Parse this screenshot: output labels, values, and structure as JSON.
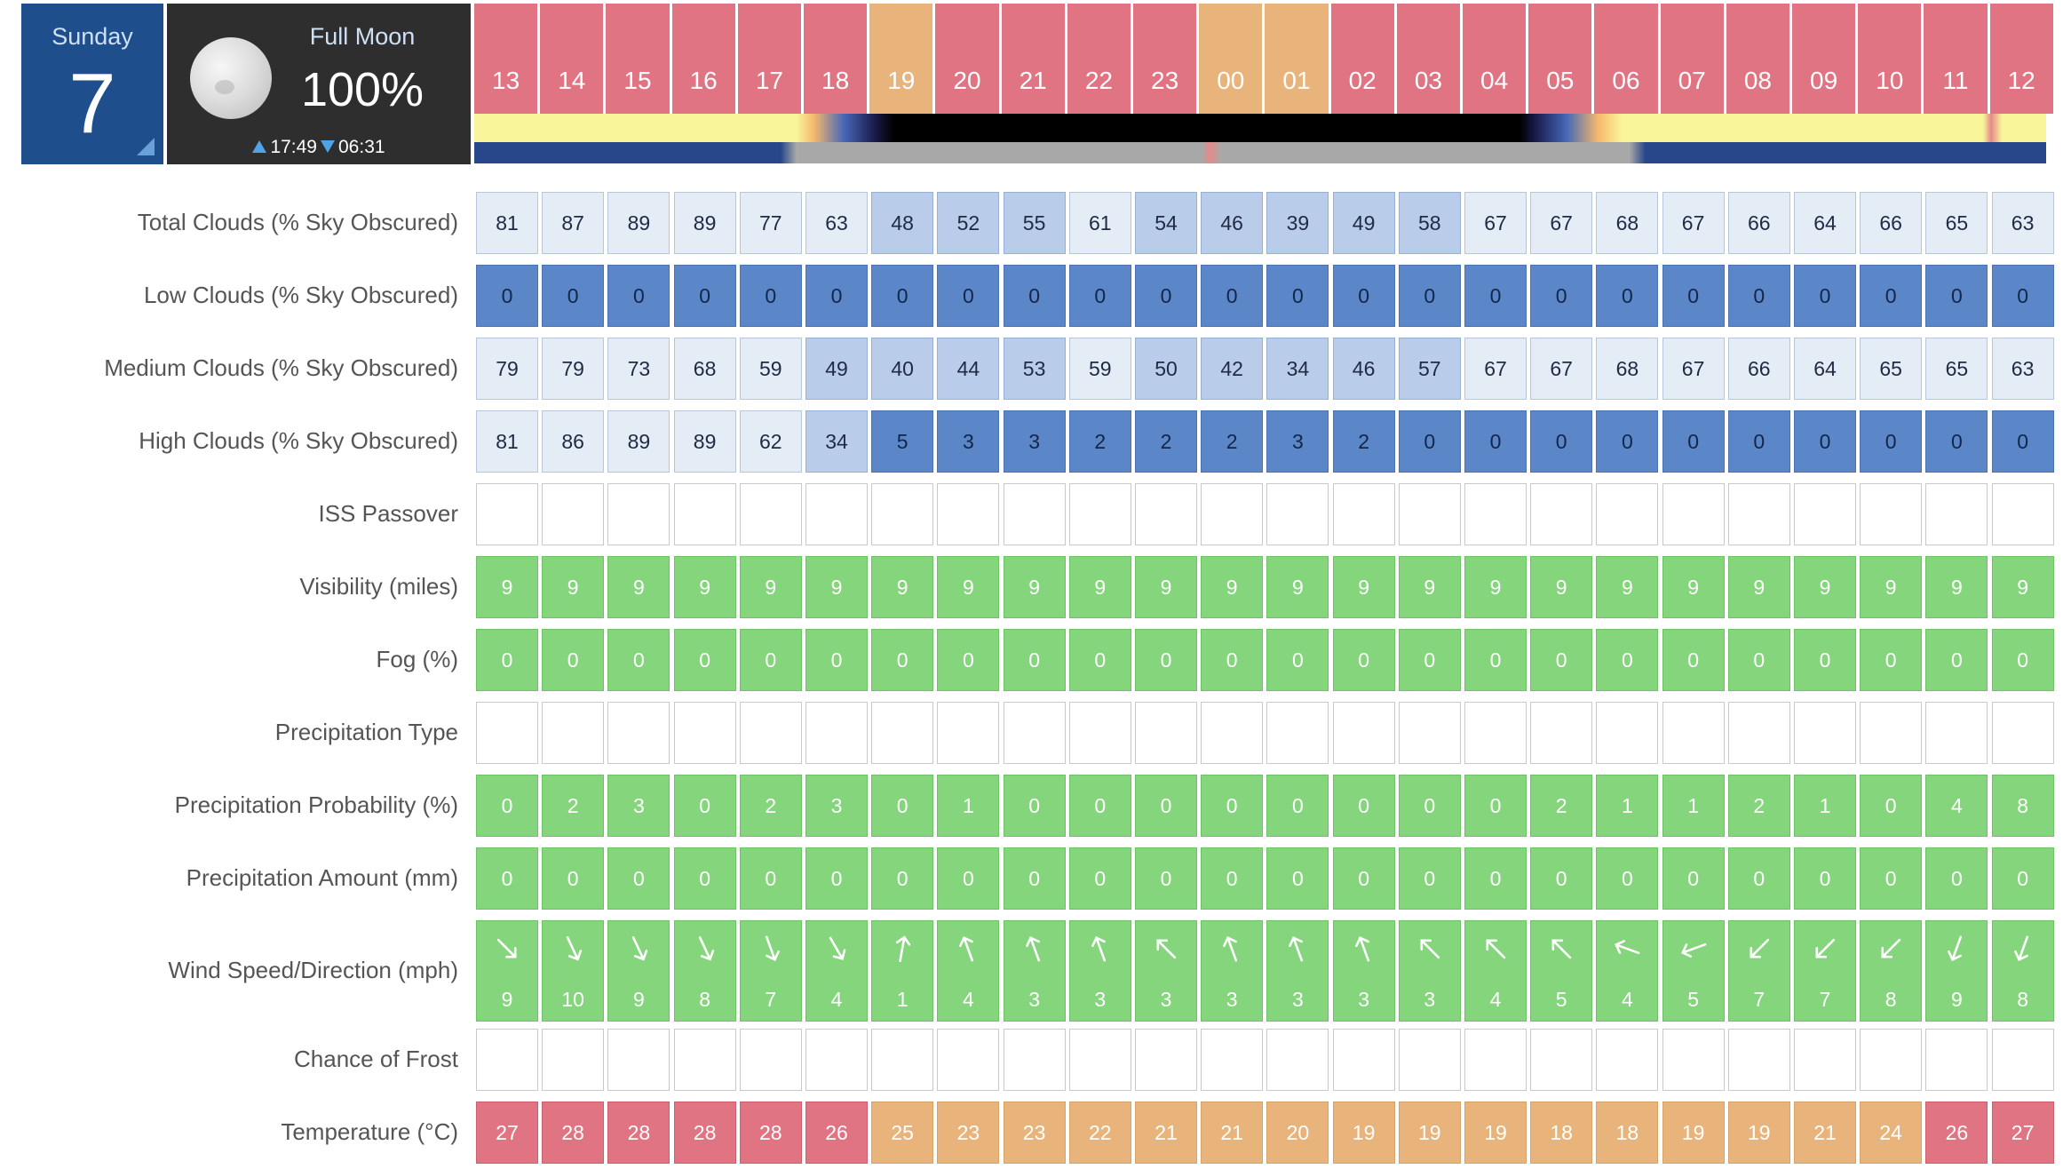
{
  "day": {
    "name": "Sunday",
    "number": "7"
  },
  "moon": {
    "phase": "Full Moon",
    "percent": "100%",
    "rise": "17:49",
    "set": "06:31",
    "icon": "full-moon-icon"
  },
  "hours": [
    "13",
    "14",
    "15",
    "16",
    "17",
    "18",
    "19",
    "20",
    "21",
    "22",
    "23",
    "00",
    "01",
    "02",
    "03",
    "04",
    "05",
    "06",
    "07",
    "08",
    "09",
    "10",
    "11",
    "12"
  ],
  "hour_colors": [
    "red",
    "red",
    "red",
    "red",
    "red",
    "red",
    "orange",
    "red",
    "red",
    "red",
    "red",
    "orange",
    "orange",
    "red",
    "red",
    "red",
    "red",
    "red",
    "red",
    "red",
    "red",
    "red",
    "red",
    "red"
  ],
  "colors": {
    "red": "#e17482",
    "orange": "#e8b47c",
    "green": "#84d57c",
    "cloud_pale": "#e4ecf6",
    "cloud_mid": "#b9ccea",
    "cloud_dark": "#5b87c8",
    "day_box": "#1f4e8c"
  },
  "rows": [
    {
      "key": "total_clouds",
      "label": "Total Clouds (% Sky Obscured)",
      "kind": "cloud",
      "values": [
        "81",
        "87",
        "89",
        "89",
        "77",
        "63",
        "48",
        "52",
        "55",
        "61",
        "54",
        "46",
        "39",
        "49",
        "58",
        "67",
        "67",
        "68",
        "67",
        "66",
        "64",
        "66",
        "65",
        "63"
      ]
    },
    {
      "key": "low_clouds",
      "label": "Low Clouds (% Sky Obscured)",
      "kind": "cloud",
      "values": [
        "0",
        "0",
        "0",
        "0",
        "0",
        "0",
        "0",
        "0",
        "0",
        "0",
        "0",
        "0",
        "0",
        "0",
        "0",
        "0",
        "0",
        "0",
        "0",
        "0",
        "0",
        "0",
        "0",
        "0"
      ]
    },
    {
      "key": "medium_clouds",
      "label": "Medium Clouds (% Sky Obscured)",
      "kind": "cloud",
      "values": [
        "79",
        "79",
        "73",
        "68",
        "59",
        "49",
        "40",
        "44",
        "53",
        "59",
        "50",
        "42",
        "34",
        "46",
        "57",
        "67",
        "67",
        "68",
        "67",
        "66",
        "64",
        "65",
        "65",
        "63"
      ]
    },
    {
      "key": "high_clouds",
      "label": "High Clouds (% Sky Obscured)",
      "kind": "cloud",
      "values": [
        "81",
        "86",
        "89",
        "89",
        "62",
        "34",
        "5",
        "3",
        "3",
        "2",
        "2",
        "2",
        "3",
        "2",
        "0",
        "0",
        "0",
        "0",
        "0",
        "0",
        "0",
        "0",
        "0",
        "0"
      ]
    },
    {
      "key": "iss_passover",
      "label": "ISS Passover",
      "kind": "empty",
      "values": [
        "",
        "",
        "",
        "",
        "",
        "",
        "",
        "",
        "",
        "",
        "",
        "",
        "",
        "",
        "",
        "",
        "",
        "",
        "",
        "",
        "",
        "",
        "",
        ""
      ]
    },
    {
      "key": "visibility",
      "label": "Visibility (miles)",
      "kind": "green",
      "values": [
        "9",
        "9",
        "9",
        "9",
        "9",
        "9",
        "9",
        "9",
        "9",
        "9",
        "9",
        "9",
        "9",
        "9",
        "9",
        "9",
        "9",
        "9",
        "9",
        "9",
        "9",
        "9",
        "9",
        "9"
      ]
    },
    {
      "key": "fog",
      "label": "Fog (%)",
      "kind": "green",
      "values": [
        "0",
        "0",
        "0",
        "0",
        "0",
        "0",
        "0",
        "0",
        "0",
        "0",
        "0",
        "0",
        "0",
        "0",
        "0",
        "0",
        "0",
        "0",
        "0",
        "0",
        "0",
        "0",
        "0",
        "0"
      ]
    },
    {
      "key": "precip_type",
      "label": "Precipitation Type",
      "kind": "empty",
      "values": [
        "",
        "",
        "",
        "",
        "",
        "",
        "",
        "",
        "",
        "",
        "",
        "",
        "",
        "",
        "",
        "",
        "",
        "",
        "",
        "",
        "",
        "",
        "",
        ""
      ]
    },
    {
      "key": "precip_prob",
      "label": "Precipitation Probability (%)",
      "kind": "green",
      "values": [
        "0",
        "2",
        "3",
        "0",
        "2",
        "3",
        "0",
        "1",
        "0",
        "0",
        "0",
        "0",
        "0",
        "0",
        "0",
        "0",
        "2",
        "1",
        "1",
        "2",
        "1",
        "0",
        "4",
        "8"
      ]
    },
    {
      "key": "precip_amount",
      "label": "Precipitation Amount (mm)",
      "kind": "green",
      "values": [
        "0",
        "0",
        "0",
        "0",
        "0",
        "0",
        "0",
        "0",
        "0",
        "0",
        "0",
        "0",
        "0",
        "0",
        "0",
        "0",
        "0",
        "0",
        "0",
        "0",
        "0",
        "0",
        "0",
        "0"
      ]
    },
    {
      "key": "wind",
      "label": "Wind Speed/Direction (mph)",
      "kind": "wind",
      "values": [
        "9",
        "10",
        "9",
        "8",
        "7",
        "4",
        "1",
        "4",
        "3",
        "3",
        "3",
        "3",
        "3",
        "3",
        "3",
        "4",
        "5",
        "4",
        "5",
        "7",
        "7",
        "8",
        "9",
        "8"
      ],
      "directions_deg": [
        135,
        155,
        155,
        155,
        160,
        150,
        10,
        340,
        340,
        340,
        315,
        340,
        340,
        340,
        315,
        315,
        315,
        290,
        250,
        225,
        225,
        225,
        200,
        200
      ]
    },
    {
      "key": "frost",
      "label": "Chance of Frost",
      "kind": "empty",
      "values": [
        "",
        "",
        "",
        "",
        "",
        "",
        "",
        "",
        "",
        "",
        "",
        "",
        "",
        "",
        "",
        "",
        "",
        "",
        "",
        "",
        "",
        "",
        "",
        ""
      ]
    },
    {
      "key": "temperature",
      "label": "Temperature (°C)",
      "kind": "temp",
      "values": [
        "27",
        "28",
        "28",
        "28",
        "28",
        "26",
        "25",
        "23",
        "23",
        "22",
        "21",
        "21",
        "20",
        "19",
        "19",
        "19",
        "18",
        "18",
        "19",
        "19",
        "21",
        "24",
        "26",
        "27"
      ],
      "levels": [
        "red",
        "red",
        "red",
        "red",
        "red",
        "red",
        "orange",
        "orange",
        "orange",
        "orange",
        "orange",
        "orange",
        "orange",
        "orange",
        "orange",
        "orange",
        "orange",
        "orange",
        "orange",
        "orange",
        "orange",
        "orange",
        "red",
        "red"
      ]
    }
  ]
}
